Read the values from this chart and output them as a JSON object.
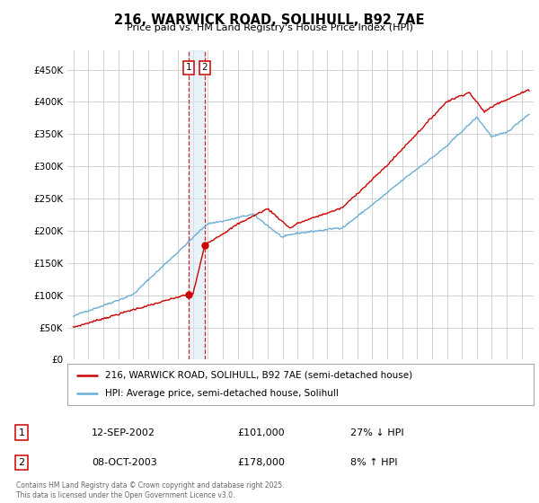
{
  "title": "216, WARWICK ROAD, SOLIHULL, B92 7AE",
  "subtitle": "Price paid vs. HM Land Registry's House Price Index (HPI)",
  "legend_label_red": "216, WARWICK ROAD, SOLIHULL, B92 7AE (semi-detached house)",
  "legend_label_blue": "HPI: Average price, semi-detached house, Solihull",
  "transaction_1_date": "12-SEP-2002",
  "transaction_1_price": "£101,000",
  "transaction_1_hpi": "27% ↓ HPI",
  "transaction_2_date": "08-OCT-2003",
  "transaction_2_price": "£178,000",
  "transaction_2_hpi": "8% ↑ HPI",
  "footer": "Contains HM Land Registry data © Crown copyright and database right 2025.\nThis data is licensed under the Open Government Licence v3.0.",
  "red_color": "#cc0000",
  "blue_color": "#6baed6",
  "blue_fill_color": "#d0e8f5",
  "background_color": "#ffffff",
  "grid_color": "#cccccc",
  "ylim": [
    0,
    480000
  ],
  "yticks": [
    0,
    50000,
    100000,
    150000,
    200000,
    250000,
    300000,
    350000,
    400000,
    450000
  ],
  "ytick_labels": [
    "£0",
    "£50K",
    "£100K",
    "£150K",
    "£200K",
    "£250K",
    "£300K",
    "£350K",
    "£400K",
    "£450K"
  ],
  "transaction_1_x": 2002.7,
  "transaction_1_y": 101000,
  "transaction_2_x": 2003.8,
  "transaction_2_y": 178000,
  "xlim_left": 1994.6,
  "xlim_right": 2025.8
}
